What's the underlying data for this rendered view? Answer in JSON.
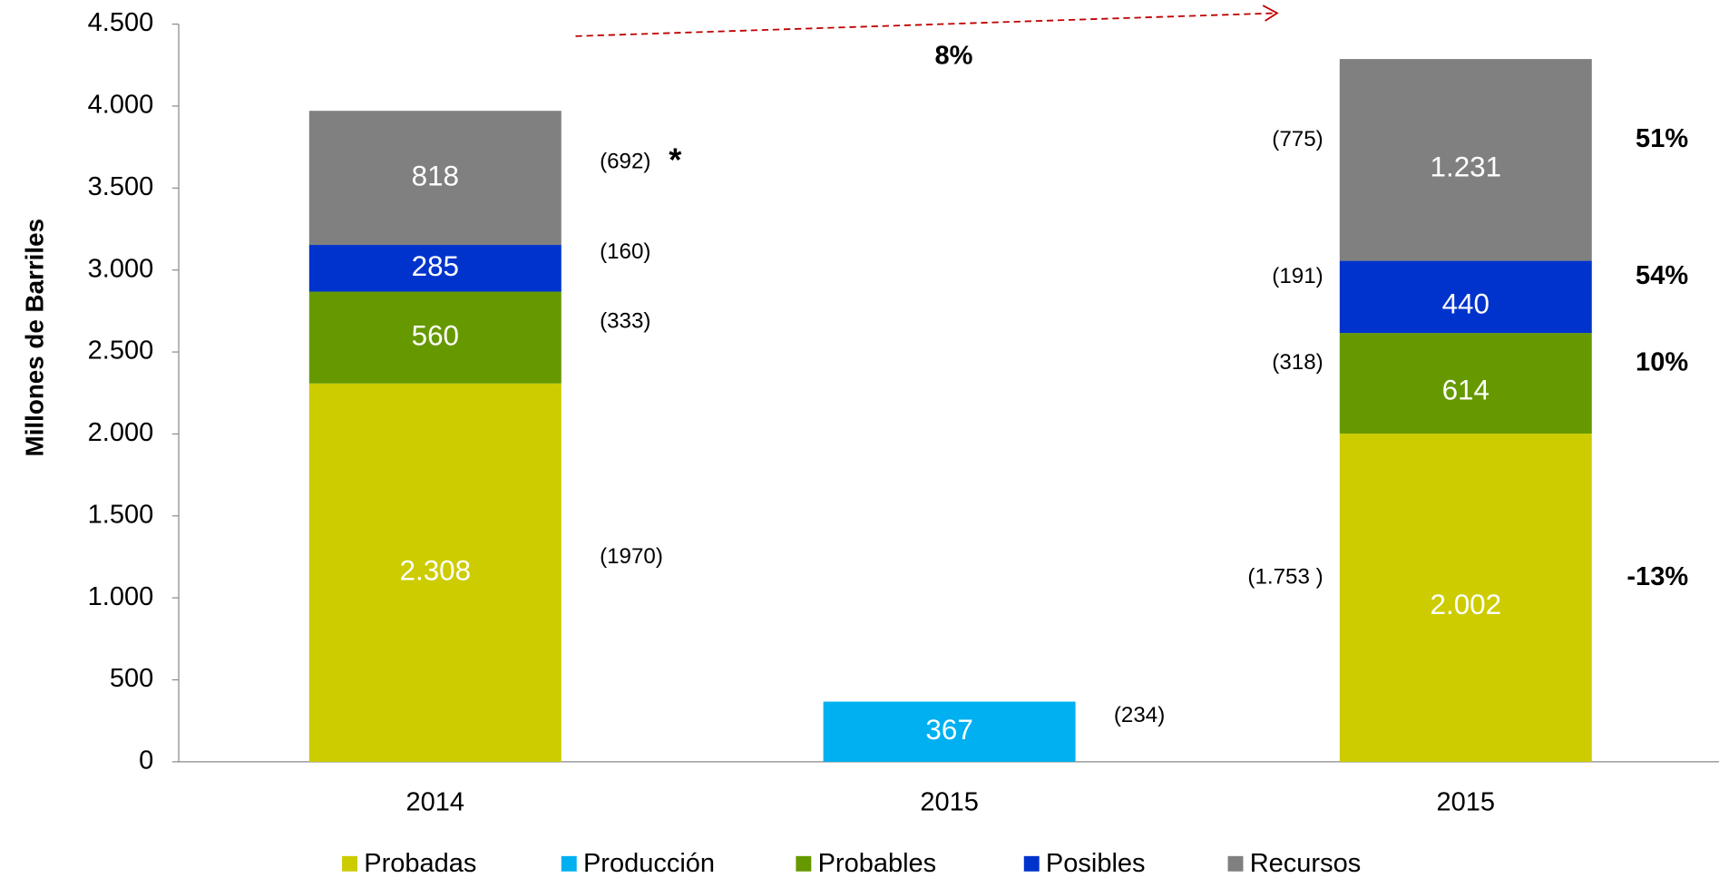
{
  "chart_data": {
    "type": "stacked_bar",
    "y_label": "Millones de  Barriles",
    "categories": [
      "2014",
      "2015",
      "2015"
    ],
    "ylim": [
      0,
      4500
    ],
    "yticks": [
      0,
      500,
      {
        "value": 1000,
        "label": "1.000"
      },
      {
        "value": 1500,
        "label": "1.500"
      },
      {
        "value": 2000,
        "label": "2.000"
      },
      {
        "value": 2500,
        "label": "2.500"
      },
      {
        "value": 3000,
        "label": "3.000"
      },
      {
        "value": 3500,
        "label": "3.500"
      },
      {
        "value": 4000,
        "label": "4.000"
      },
      {
        "value": 4500,
        "label": "4.500"
      }
    ],
    "series": [
      {
        "name": "Probadas",
        "color": "#cccc00",
        "values": [
          2308,
          null,
          2002
        ],
        "value_labels": [
          "2.308",
          null,
          "2.002"
        ],
        "notes": [
          "(1970)",
          null,
          "(1.753 )"
        ],
        "changes": [
          null,
          null,
          "-13%"
        ]
      },
      {
        "name": "Producción",
        "color": "#00b0f0",
        "values": [
          null,
          367,
          null
        ],
        "value_labels": [
          null,
          "367",
          null
        ],
        "notes": [
          null,
          "(234)",
          null
        ],
        "changes": [
          null,
          null,
          null
        ]
      },
      {
        "name": "Probables",
        "color": "#669900",
        "values": [
          560,
          null,
          614
        ],
        "value_labels": [
          "560",
          null,
          "614"
        ],
        "notes": [
          "(333)",
          null,
          "(318)"
        ],
        "changes": [
          null,
          null,
          "10%"
        ]
      },
      {
        "name": "Posibles",
        "color": "#0033cc",
        "values": [
          285,
          null,
          440
        ],
        "value_labels": [
          "285",
          null,
          "440"
        ],
        "notes": [
          "(160)",
          null,
          "(191)"
        ],
        "changes": [
          null,
          null,
          "54%"
        ]
      },
      {
        "name": "Recursos",
        "color": "#808080",
        "values": [
          818,
          null,
          1231
        ],
        "value_labels": [
          "818",
          null,
          "1.231"
        ],
        "notes": [
          "(692)",
          null,
          "(775)"
        ],
        "changes": [
          null,
          null,
          "51%"
        ]
      }
    ],
    "annotations": {
      "total_change": "8%",
      "asterisk": "*"
    }
  }
}
